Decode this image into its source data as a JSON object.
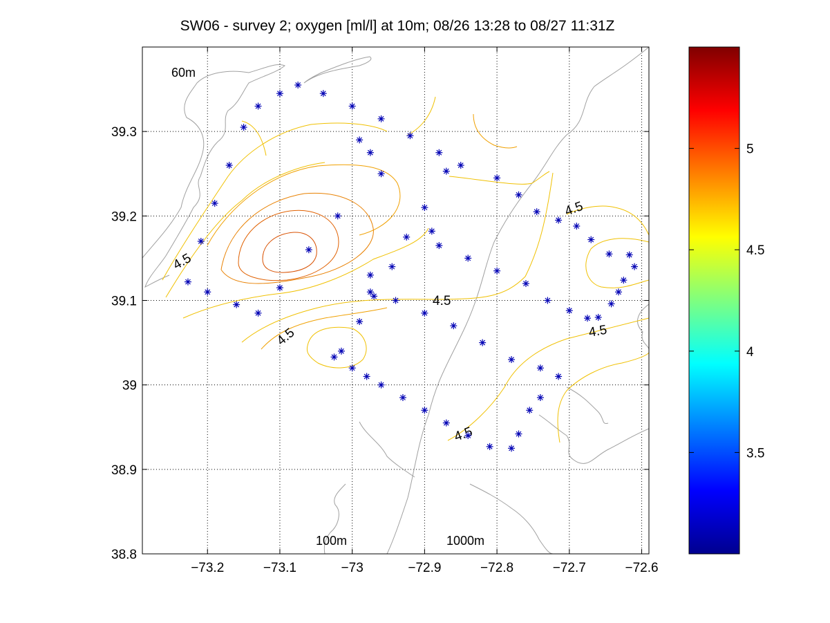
{
  "chart_data": {
    "type": "scatter",
    "title": "SW06 - survey 2; oxygen [ml/l] at 10m; 08/26 13:28 to 08/27 11:31Z",
    "xlim": [
      -73.29,
      -72.59
    ],
    "ylim": [
      38.8,
      39.4
    ],
    "x_ticks": [
      -73.2,
      -73.1,
      -73.0,
      -72.9,
      -72.8,
      -72.7,
      -72.6
    ],
    "x_tick_labels": [
      "−73.2",
      "−73.1",
      "−73",
      "−72.9",
      "−72.8",
      "−72.7",
      "−72.6"
    ],
    "y_ticks": [
      38.8,
      38.9,
      39.0,
      39.1,
      39.2,
      39.3
    ],
    "y_tick_labels": [
      "38.8",
      "38.9",
      "39",
      "39.1",
      "39.2",
      "39.3"
    ],
    "grid": true,
    "station_marker": "*",
    "station_color": "#0000b4",
    "stations": [
      [
        -73.227,
        39.122
      ],
      [
        -73.209,
        39.17
      ],
      [
        -73.19,
        39.215
      ],
      [
        -73.17,
        39.26
      ],
      [
        -73.15,
        39.305
      ],
      [
        -73.13,
        39.33
      ],
      [
        -73.1,
        39.345
      ],
      [
        -73.075,
        39.355
      ],
      [
        -73.04,
        39.345
      ],
      [
        -73.0,
        39.33
      ],
      [
        -72.96,
        39.315
      ],
      [
        -72.92,
        39.295
      ],
      [
        -72.88,
        39.275
      ],
      [
        -72.85,
        39.26
      ],
      [
        -72.8,
        39.245
      ],
      [
        -72.77,
        39.225
      ],
      [
        -72.745,
        39.205
      ],
      [
        -72.715,
        39.195
      ],
      [
        -72.69,
        39.188
      ],
      [
        -72.67,
        39.172
      ],
      [
        -72.645,
        39.155
      ],
      [
        -72.61,
        39.14
      ],
      [
        -72.617,
        39.154
      ],
      [
        -72.625,
        39.124
      ],
      [
        -72.632,
        39.11
      ],
      [
        -72.642,
        39.096
      ],
      [
        -72.66,
        39.08
      ],
      [
        -72.675,
        39.079
      ],
      [
        -72.7,
        39.088
      ],
      [
        -72.73,
        39.1
      ],
      [
        -72.76,
        39.12
      ],
      [
        -72.8,
        39.135
      ],
      [
        -72.84,
        39.15
      ],
      [
        -72.88,
        39.165
      ],
      [
        -72.89,
        39.182
      ],
      [
        -72.87,
        39.253
      ],
      [
        -72.9,
        39.21
      ],
      [
        -72.925,
        39.175
      ],
      [
        -72.945,
        39.14
      ],
      [
        -72.97,
        39.105
      ],
      [
        -72.99,
        39.075
      ],
      [
        -73.015,
        39.04
      ],
      [
        -73.025,
        39.033
      ],
      [
        -73.0,
        39.02
      ],
      [
        -72.98,
        39.01
      ],
      [
        -72.96,
        39.0
      ],
      [
        -72.93,
        38.985
      ],
      [
        -72.9,
        38.97
      ],
      [
        -72.87,
        38.955
      ],
      [
        -72.84,
        38.94
      ],
      [
        -72.81,
        38.927
      ],
      [
        -72.78,
        38.925
      ],
      [
        -72.77,
        38.942
      ],
      [
        -72.755,
        38.97
      ],
      [
        -72.74,
        38.985
      ],
      [
        -72.715,
        39.01
      ],
      [
        -72.74,
        39.02
      ],
      [
        -72.78,
        39.03
      ],
      [
        -72.82,
        39.05
      ],
      [
        -72.86,
        39.07
      ],
      [
        -72.9,
        39.085
      ],
      [
        -72.94,
        39.1
      ],
      [
        -72.975,
        39.11
      ],
      [
        -72.975,
        39.13
      ],
      [
        -72.96,
        39.25
      ],
      [
        -72.975,
        39.275
      ],
      [
        -72.99,
        39.29
      ],
      [
        -73.02,
        39.2
      ],
      [
        -73.06,
        39.16
      ],
      [
        -73.1,
        39.115
      ],
      [
        -73.13,
        39.085
      ],
      [
        -73.16,
        39.095
      ],
      [
        -73.2,
        39.11
      ]
    ],
    "contour_labels": [
      "4.5",
      "4.5",
      "4.5",
      "4.5",
      "4.5",
      "4.5"
    ],
    "depth_labels": [
      "60m",
      "100m",
      "1000m"
    ],
    "colorbar": {
      "colormap": "jet",
      "range": [
        3.0,
        5.5
      ],
      "ticks": [
        3.5,
        4,
        4.5,
        5
      ],
      "tick_labels": [
        "3.5",
        "4",
        "4.5",
        "5"
      ]
    }
  }
}
